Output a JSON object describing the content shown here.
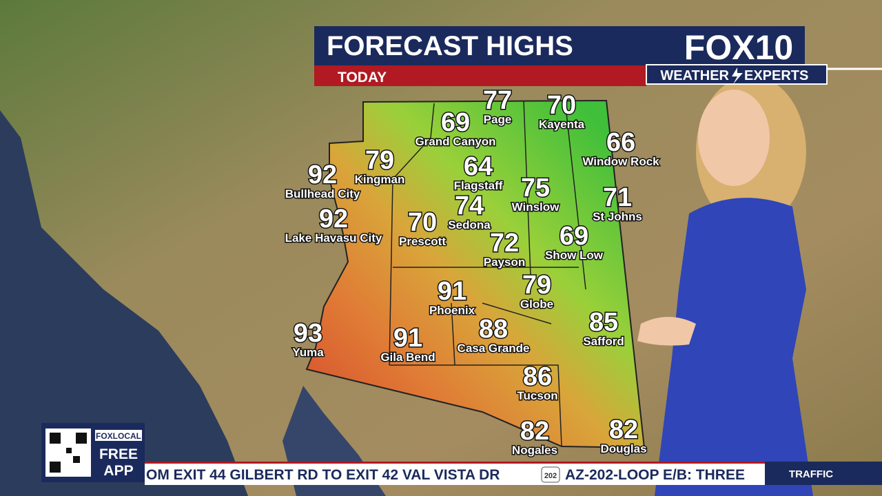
{
  "header": {
    "title": "FORECAST HIGHS",
    "subtitle": "TODAY"
  },
  "logo": {
    "brand": "FOX10",
    "tagline_left": "WEATHER",
    "tagline_right": "EXPERTS"
  },
  "cities": [
    {
      "name": "Page",
      "temp": 77
    },
    {
      "name": "Kayenta",
      "temp": 70
    },
    {
      "name": "Grand Canyon",
      "temp": 69
    },
    {
      "name": "Window Rock",
      "temp": 66
    },
    {
      "name": "Kingman",
      "temp": 79
    },
    {
      "name": "Bullhead City",
      "temp": 92
    },
    {
      "name": "Flagstaff",
      "temp": 64
    },
    {
      "name": "Winslow",
      "temp": 75
    },
    {
      "name": "St Johns",
      "temp": 71
    },
    {
      "name": "Lake Havasu City",
      "temp": 92
    },
    {
      "name": "Sedona",
      "temp": 74
    },
    {
      "name": "Prescott",
      "temp": 70
    },
    {
      "name": "Payson",
      "temp": 72
    },
    {
      "name": "Show Low",
      "temp": 69
    },
    {
      "name": "Phoenix",
      "temp": 91
    },
    {
      "name": "Globe",
      "temp": 79
    },
    {
      "name": "Safford",
      "temp": 85
    },
    {
      "name": "Yuma",
      "temp": 93
    },
    {
      "name": "Casa Grande",
      "temp": 88
    },
    {
      "name": "Gila Bend",
      "temp": 91
    },
    {
      "name": "Tucson",
      "temp": 86
    },
    {
      "name": "Nogales",
      "temp": 82
    },
    {
      "name": "Douglas",
      "temp": 82
    }
  ],
  "promo": {
    "brand": "FOXLOCAL",
    "line1": "FREE",
    "line2": "APP"
  },
  "ticker": {
    "text": "OM EXIT 44 GILBERT RD TO EXIT 42 VAL VISTA DR",
    "shield": "202",
    "text2": "AZ-202-LOOP E/B: THREE",
    "label": "TRAFFIC"
  }
}
